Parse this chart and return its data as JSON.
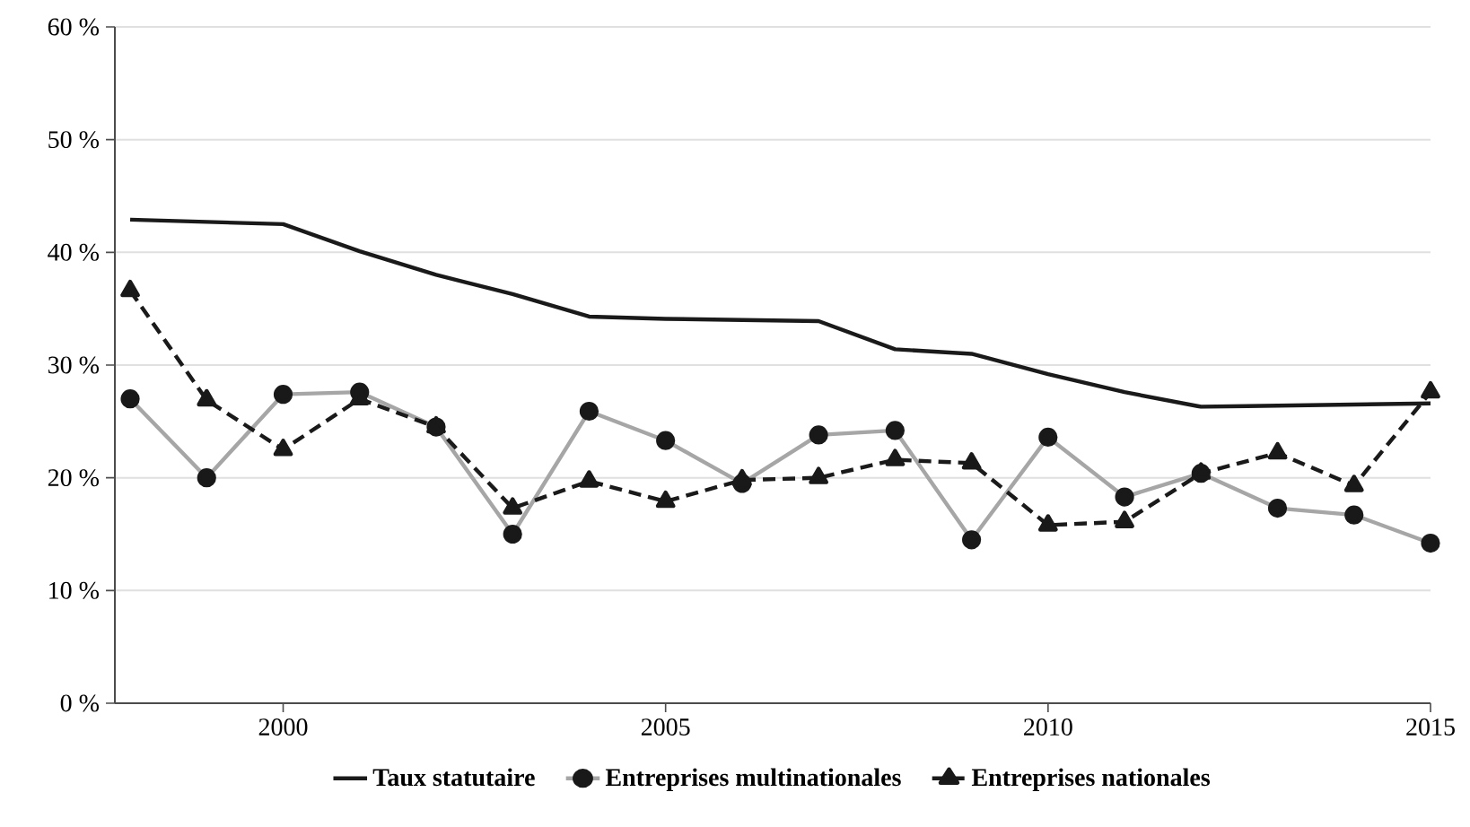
{
  "chart_data": {
    "type": "line",
    "x": [
      1998,
      1999,
      2000,
      2001,
      2002,
      2003,
      2004,
      2005,
      2006,
      2007,
      2008,
      2009,
      2010,
      2011,
      2012,
      2013,
      2014,
      2015
    ],
    "series": [
      {
        "name": "Taux statutaire",
        "color": "#1a1a1a",
        "line_style": "solid",
        "marker": "none",
        "values": [
          42.9,
          42.7,
          42.5,
          40.1,
          38.0,
          36.3,
          34.3,
          34.1,
          34.0,
          33.9,
          31.4,
          31.0,
          29.2,
          27.6,
          26.3,
          26.4,
          26.5,
          26.6
        ]
      },
      {
        "name": "Entreprises multinationales",
        "color": "#a6a6a6",
        "line_style": "solid",
        "marker": "circle",
        "values": [
          27.0,
          20.0,
          27.4,
          27.6,
          24.5,
          15.0,
          25.9,
          23.3,
          19.5,
          23.8,
          24.2,
          14.5,
          23.6,
          18.3,
          20.4,
          17.3,
          16.7,
          14.2
        ]
      },
      {
        "name": "Entreprises nationales",
        "color": "#1a1a1a",
        "line_style": "dashed",
        "marker": "triangle",
        "values": [
          36.6,
          26.9,
          22.5,
          27.0,
          24.5,
          17.3,
          19.7,
          17.9,
          19.8,
          20.0,
          21.6,
          21.3,
          15.8,
          16.1,
          20.4,
          22.2,
          19.3,
          27.6
        ]
      }
    ],
    "xlim": [
      1997.8,
      2015
    ],
    "xticks": [
      2000,
      2005,
      2010,
      2015
    ],
    "ylim": [
      0,
      60
    ],
    "yticks": [
      {
        "value": 0,
        "label": "0 %"
      },
      {
        "value": 10,
        "label": "10 %"
      },
      {
        "value": 20,
        "label": "20 %"
      },
      {
        "value": 30,
        "label": "30 %"
      },
      {
        "value": 40,
        "label": "40 %"
      },
      {
        "value": 50,
        "label": "50 %"
      },
      {
        "value": 60,
        "label": "60 %"
      }
    ],
    "grid": "y",
    "legend": "bottom"
  }
}
